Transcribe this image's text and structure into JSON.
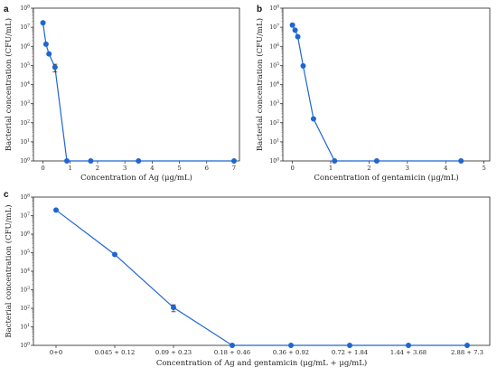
{
  "chart_data": [
    {
      "panel": "a",
      "type": "scatter",
      "xlabel": "Concentration of Ag (μg/mL)",
      "ylabel": "Bacterial concentration (CFU/mL)",
      "xlim": [
        -0.35,
        7.2
      ],
      "ylim": [
        1,
        100000000
      ],
      "yscale": "log",
      "xticks": [
        0,
        1,
        2,
        3,
        4,
        5,
        6,
        7
      ],
      "yticks": [
        "10^0",
        "10^1",
        "10^2",
        "10^3",
        "10^4",
        "10^5",
        "10^6",
        "10^7",
        "10^8"
      ],
      "series": [
        {
          "color": "#1f66d1",
          "x": [
            0,
            0.11,
            0.22,
            0.44,
            0.875,
            1.75,
            3.5,
            7
          ],
          "y": [
            17000000,
            1300000,
            400000,
            80000,
            1,
            1,
            1,
            1
          ],
          "error": [
            0,
            0,
            0,
            35000,
            0,
            0,
            0,
            0
          ]
        }
      ]
    },
    {
      "panel": "b",
      "type": "scatter",
      "xlabel": "Concentration of gentamicin (μg/mL)",
      "ylabel": "Bacterial concentration (CFU/mL)",
      "xlim": [
        -0.25,
        5.15
      ],
      "ylim": [
        1,
        100000000
      ],
      "yscale": "log",
      "xticks": [
        0,
        1,
        2,
        3,
        4,
        5
      ],
      "yticks": [
        "10^0",
        "10^1",
        "10^2",
        "10^3",
        "10^4",
        "10^5",
        "10^6",
        "10^7",
        "10^8"
      ],
      "series": [
        {
          "color": "#1f66d1",
          "x": [
            0,
            0.07,
            0.14,
            0.28,
            0.55,
            1.1,
            2.2,
            4.4
          ],
          "y": [
            13000000,
            7000000,
            3200000,
            95000,
            160,
            1,
            1,
            1
          ],
          "error": [
            0,
            0,
            0,
            0,
            0,
            0,
            0,
            0
          ]
        }
      ]
    },
    {
      "panel": "c",
      "type": "scatter",
      "xlabel": "Concentration of Ag and gentamicin (μg/mL + μg/mL)",
      "ylabel": "Bacterial concentration (CFU/mL)",
      "ylim": [
        1,
        100000000
      ],
      "yscale": "log",
      "categories": [
        "0+0",
        "0.045 + 0.12",
        "0.09 + 0.23",
        "0.18 + 0.46",
        "0.36 + 0.92",
        "0.72 + 1.84",
        "1.44 + 3.68",
        "2.88 + 7.3"
      ],
      "yticks": [
        "10^0",
        "10^1",
        "10^2",
        "10^3",
        "10^4",
        "10^5",
        "10^6",
        "10^7",
        "10^8"
      ],
      "series": [
        {
          "color": "#1f66d1",
          "values": [
            20000000,
            80000,
            110,
            1,
            1,
            1,
            1,
            1
          ],
          "error": [
            0,
            0,
            45,
            0,
            0,
            0,
            0,
            0
          ]
        }
      ]
    }
  ]
}
